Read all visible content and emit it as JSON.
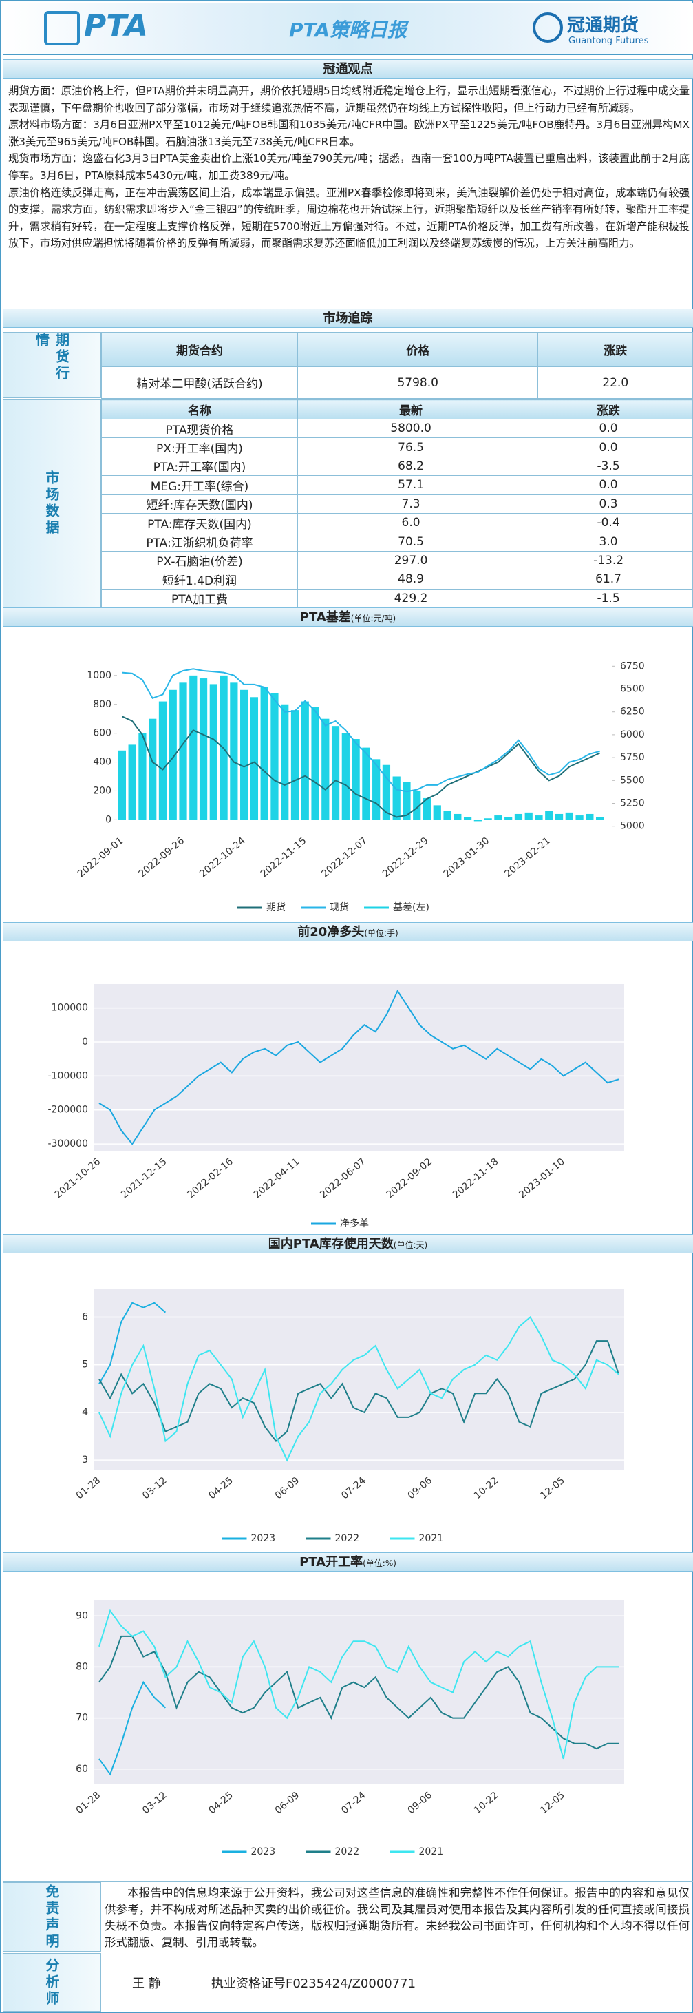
{
  "header": {
    "logo": "PTA",
    "title": "PTA策略日报",
    "company": "冠通期货",
    "company_en": "Guantong Futures"
  },
  "view": {
    "heading": "冠通观点",
    "paragraphs": [
      "期货方面：原油价格上行，但PTA期价并未明显高开，期价依托短期5日均线附近稳定增仓上行，显示出短期看涨信心，不过期价上行过程中成交量表现谨慎，下午盘期价也收回了部分涨幅，市场对于继续追涨热情不高，近期虽然仍在均线上方试探性收阳，但上行动力已经有所减弱。",
      "原材料市场方面：3月6日亚洲PX平至1012美元/吨FOB韩国和1035美元/吨CFR中国。欧洲PX平至1225美元/吨FOB鹿特丹。3月6日亚洲异构MX涨3美元至965美元/吨FOB韩国。石脑油涨13美元至738美元/吨CFR日本。",
      "现货市场方面：逸盛石化3月3日PTA美金卖出价上涨10美元/吨至790美元/吨；据悉，西南一套100万吨PTA装置已重启出料，该装置此前于2月底停车。3月6日，PTA原料成本5430元/吨，加工费389元/吨。",
      "原油价格连续反弹走高，正在冲击震荡区间上沿，成本端显示偏强。亚洲PX春季检修即将到来，美汽油裂解价差仍处于相对高位，成本端仍有较强的支撑，需求方面，纺织需求即将步入“金三银四”的传统旺季，周边棉花也开始试探上行，近期聚酯短纤以及长丝产销率有所好转，聚酯开工率提升，需求稍有好转，在一定程度上支撑价格反弹，短期在5700附近上方偏强对待。不过，近期PTA价格反弹，加工费有所改善，在新增产能积极投放下，市场对供应端担忧将随着价格的反弹有所减弱，而聚酯需求复苏还面临低加工利润以及终端复苏缓慢的情况，上方关注前高阻力。"
    ]
  },
  "market": {
    "heading": "市场追踪",
    "futures": {
      "label": "期货行情",
      "columns": [
        "期货合约",
        "价格",
        "涨跌"
      ],
      "rows": [
        [
          "精对苯二甲酸(活跃合约)",
          "5798.0",
          "22.0"
        ]
      ]
    },
    "data": {
      "label": "市场数据",
      "columns": [
        "名称",
        "最新",
        "涨跌"
      ],
      "rows": [
        [
          "PTA现货价格",
          "5800.0",
          "0.0"
        ],
        [
          "PX:开工率(国内)",
          "76.5",
          "0.0"
        ],
        [
          "PTA:开工率(国内)",
          "68.2",
          "-3.5"
        ],
        [
          "MEG:开工率(综合)",
          "57.1",
          "0.0"
        ],
        [
          "短纤:库存天数(国内)",
          "7.3",
          "0.3"
        ],
        [
          "PTA:库存天数(国内)",
          "6.0",
          "-0.4"
        ],
        [
          "PTA:江浙织机负荷率",
          "70.5",
          "3.0"
        ],
        [
          "PX-石脑油(价差)",
          "297.0",
          "-13.2"
        ],
        [
          "短纤1.4D利润",
          "48.9",
          "61.7"
        ],
        [
          "PTA加工费",
          "429.2",
          "-1.5"
        ]
      ]
    }
  },
  "chart_data": [
    {
      "type": "combo",
      "title": "PTA基差",
      "subtitle": "(单位:元/吨)",
      "background": "#ffffff",
      "grid": false,
      "categories": [
        "2022-09-01",
        null,
        null,
        null,
        null,
        null,
        "2022-09-26",
        null,
        null,
        null,
        null,
        null,
        "2022-10-24",
        null,
        null,
        null,
        null,
        null,
        "2022-11-15",
        null,
        null,
        null,
        null,
        null,
        "2022-12-07",
        null,
        null,
        null,
        null,
        null,
        "2022-12-29",
        null,
        null,
        null,
        null,
        null,
        "2023-01-30",
        null,
        null,
        null,
        null,
        null,
        "2023-02-21",
        null,
        null,
        null,
        null,
        null
      ],
      "series": [
        {
          "name": "期货",
          "color": "#1f6f78",
          "type": "line",
          "axis": "y2",
          "values": [
            6200,
            6150,
            6000,
            5700,
            5620,
            5750,
            5900,
            6050,
            6000,
            5950,
            5850,
            5700,
            5650,
            5700,
            5600,
            5500,
            5450,
            5500,
            5550,
            5480,
            5400,
            5500,
            5450,
            5350,
            5300,
            5250,
            5150,
            5100,
            5120,
            5200,
            5300,
            5350,
            5450,
            5500,
            5550,
            5600,
            5650,
            5700,
            5800,
            5900,
            5750,
            5600,
            5500,
            5550,
            5650,
            5700,
            5750,
            5800
          ]
        },
        {
          "name": "现货",
          "color": "#29b6e8",
          "type": "line",
          "axis": "y2",
          "values": [
            6680,
            6670,
            6600,
            6400,
            6440,
            6650,
            6700,
            6720,
            6700,
            6690,
            6680,
            6650,
            6550,
            6550,
            6520,
            6380,
            6250,
            6260,
            6370,
            6260,
            6100,
            6150,
            6050,
            5910,
            5800,
            5670,
            5530,
            5400,
            5380,
            5400,
            5450,
            5450,
            5510,
            5540,
            5570,
            5590,
            5660,
            5730,
            5820,
            5940,
            5800,
            5630,
            5560,
            5590,
            5700,
            5730,
            5790,
            5820
          ]
        },
        {
          "name": "基差(左)",
          "color": "#1ed3e6",
          "type": "bar",
          "values": [
            480,
            520,
            600,
            700,
            820,
            900,
            950,
            1000,
            980,
            940,
            1000,
            950,
            900,
            850,
            920,
            880,
            800,
            760,
            820,
            780,
            700,
            650,
            600,
            560,
            500,
            420,
            380,
            300,
            260,
            200,
            150,
            100,
            60,
            40,
            20,
            -10,
            10,
            30,
            20,
            40,
            50,
            30,
            60,
            40,
            50,
            30,
            40,
            20
          ]
        }
      ],
      "ylim": [
        -70,
        1090
      ],
      "yticks": [
        0,
        200,
        400,
        600,
        800,
        1000
      ],
      "y2lim": [
        4960,
        6790
      ],
      "y2ticks": [
        5000,
        5250,
        5500,
        5750,
        6000,
        6250,
        6500,
        6750
      ]
    },
    {
      "type": "line",
      "title": "前20净多头",
      "subtitle": "(单位:手)",
      "background": "#eaeaf2",
      "grid": true,
      "categories": [
        "2021-10-26",
        null,
        null,
        null,
        null,
        null,
        "2021-12-15",
        null,
        null,
        null,
        null,
        null,
        "2022-02-16",
        null,
        null,
        null,
        null,
        null,
        "2022-04-11",
        null,
        null,
        null,
        null,
        null,
        "2022-06-07",
        null,
        null,
        null,
        null,
        null,
        "2022-09-02",
        null,
        null,
        null,
        null,
        null,
        "2022-11-18",
        null,
        null,
        null,
        null,
        null,
        "2023-01-10",
        null,
        null,
        null,
        null,
        null
      ],
      "series": [
        {
          "name": "净多单",
          "color": "#1aa7e0",
          "values": [
            -180000,
            -200000,
            -260000,
            -300000,
            -250000,
            -200000,
            -180000,
            -160000,
            -130000,
            -100000,
            -80000,
            -60000,
            -90000,
            -50000,
            -30000,
            -20000,
            -40000,
            -10000,
            0,
            -30000,
            -60000,
            -40000,
            -20000,
            20000,
            50000,
            30000,
            80000,
            150000,
            100000,
            50000,
            20000,
            0,
            -20000,
            -10000,
            -30000,
            -50000,
            -20000,
            -40000,
            -60000,
            -80000,
            -50000,
            -70000,
            -100000,
            -80000,
            -60000,
            -90000,
            -120000,
            -110000
          ]
        }
      ],
      "ylim": [
        -320000,
        170000
      ],
      "yticks": [
        -300000,
        -200000,
        -100000,
        0,
        100000
      ]
    },
    {
      "type": "line",
      "title": "国内PTA库存使用天数",
      "subtitle": "(单位:天)",
      "background": "#eaeaf2",
      "grid": true,
      "categories": [
        "01-28",
        null,
        null,
        null,
        null,
        null,
        "03-12",
        null,
        null,
        null,
        null,
        null,
        "04-25",
        null,
        null,
        null,
        null,
        null,
        "06-09",
        null,
        null,
        null,
        null,
        null,
        "07-24",
        null,
        null,
        null,
        null,
        null,
        "09-06",
        null,
        null,
        null,
        null,
        null,
        "10-22",
        null,
        null,
        null,
        null,
        null,
        "12-05",
        null,
        null,
        null,
        null,
        null
      ],
      "series": [
        {
          "name": "2023",
          "color": "#1ab0e0",
          "values": [
            4.6,
            5.0,
            5.9,
            6.3,
            6.2,
            6.3,
            6.1,
            null,
            null,
            null,
            null,
            null,
            null,
            null,
            null,
            null,
            null,
            null,
            null,
            null,
            null,
            null,
            null,
            null,
            null,
            null,
            null,
            null,
            null,
            null,
            null,
            null,
            null,
            null,
            null,
            null,
            null,
            null,
            null,
            null,
            null,
            null,
            null,
            null,
            null,
            null,
            null,
            null
          ]
        },
        {
          "name": "2022",
          "color": "#1f7f8a",
          "values": [
            4.7,
            4.3,
            4.8,
            4.4,
            4.6,
            4.2,
            3.6,
            3.7,
            3.8,
            4.4,
            4.6,
            4.5,
            4.1,
            4.3,
            4.2,
            3.7,
            3.4,
            3.6,
            4.4,
            4.5,
            4.6,
            4.3,
            4.6,
            4.1,
            4.0,
            4.4,
            4.3,
            3.9,
            3.9,
            4.0,
            4.4,
            4.5,
            4.4,
            3.8,
            4.4,
            4.4,
            4.7,
            4.4,
            3.8,
            3.7,
            4.4,
            4.5,
            4.6,
            4.7,
            5.0,
            5.5,
            5.5,
            4.8
          ]
        },
        {
          "name": "2021",
          "color": "#3ee6f0",
          "values": [
            4.0,
            3.5,
            4.4,
            5.0,
            5.4,
            4.5,
            3.4,
            3.6,
            4.6,
            5.2,
            5.3,
            5.0,
            4.7,
            3.9,
            4.4,
            4.9,
            3.5,
            3.0,
            3.5,
            3.8,
            4.4,
            4.6,
            4.9,
            5.1,
            5.2,
            5.4,
            4.9,
            4.5,
            4.7,
            4.9,
            4.4,
            4.3,
            4.7,
            4.9,
            5.0,
            5.2,
            5.1,
            5.4,
            5.8,
            6.0,
            5.6,
            5.1,
            5.0,
            4.8,
            4.5,
            5.1,
            5.0,
            4.8
          ]
        }
      ],
      "ylim": [
        2.8,
        6.6
      ],
      "yticks": [
        3,
        4,
        5,
        6
      ]
    },
    {
      "type": "line",
      "title": "PTA开工率",
      "subtitle": "(单位:%)",
      "background": "#eaeaf2",
      "grid": true,
      "categories": [
        "01-28",
        null,
        null,
        null,
        null,
        null,
        "03-12",
        null,
        null,
        null,
        null,
        null,
        "04-25",
        null,
        null,
        null,
        null,
        null,
        "06-09",
        null,
        null,
        null,
        null,
        null,
        "07-24",
        null,
        null,
        null,
        null,
        null,
        "09-06",
        null,
        null,
        null,
        null,
        null,
        "10-22",
        null,
        null,
        null,
        null,
        null,
        "12-05",
        null,
        null,
        null,
        null,
        null
      ],
      "series": [
        {
          "name": "2023",
          "color": "#1ab0e0",
          "values": [
            62,
            59,
            65,
            72,
            77,
            74,
            72,
            null,
            null,
            null,
            null,
            null,
            null,
            null,
            null,
            null,
            null,
            null,
            null,
            null,
            null,
            null,
            null,
            null,
            null,
            null,
            null,
            null,
            null,
            null,
            null,
            null,
            null,
            null,
            null,
            null,
            null,
            null,
            null,
            null,
            null,
            null,
            null,
            null,
            null,
            null,
            null,
            null
          ]
        },
        {
          "name": "2022",
          "color": "#1f7f8a",
          "values": [
            77,
            80,
            86,
            86,
            82,
            83,
            79,
            72,
            77,
            79,
            78,
            75,
            72,
            71,
            72,
            75,
            77,
            79,
            72,
            73,
            74,
            70,
            76,
            77,
            76,
            78,
            74,
            72,
            70,
            72,
            74,
            71,
            70,
            70,
            73,
            76,
            79,
            80,
            77,
            71,
            70,
            68,
            66,
            65,
            65,
            64,
            65,
            65
          ]
        },
        {
          "name": "2021",
          "color": "#3ee6f0",
          "values": [
            84,
            91,
            88,
            86,
            87,
            84,
            78,
            80,
            85,
            81,
            76,
            75,
            73,
            82,
            85,
            80,
            72,
            70,
            74,
            80,
            79,
            77,
            82,
            85,
            85,
            84,
            80,
            79,
            84,
            80,
            77,
            76,
            75,
            81,
            83,
            81,
            83,
            82,
            84,
            85,
            77,
            70,
            62,
            73,
            78,
            80,
            80,
            80
          ]
        }
      ],
      "ylim": [
        57,
        93
      ],
      "yticks": [
        60,
        70,
        80,
        90
      ]
    }
  ],
  "disclaimer": {
    "label": "免责声明",
    "text": "本报告中的信息均来源于公开资料，我公司对这些信息的准确性和完整性不作任何保证。报告中的内容和意见仅供参考，并不构成对所述品种买卖的出价或征价。我公司及其雇员对使用本报告及其内容所引发的任何直接或间接损失概不负责。本报告仅向特定客户传送，版权归冠通期货所有。未经我公司书面许可，任何机构和个人均不得以任何形式翻版、复制、引用或转载。"
  },
  "analyst": {
    "label": "分析师",
    "name": "王 静",
    "license": "执业资格证号F0235424/Z0000771"
  }
}
